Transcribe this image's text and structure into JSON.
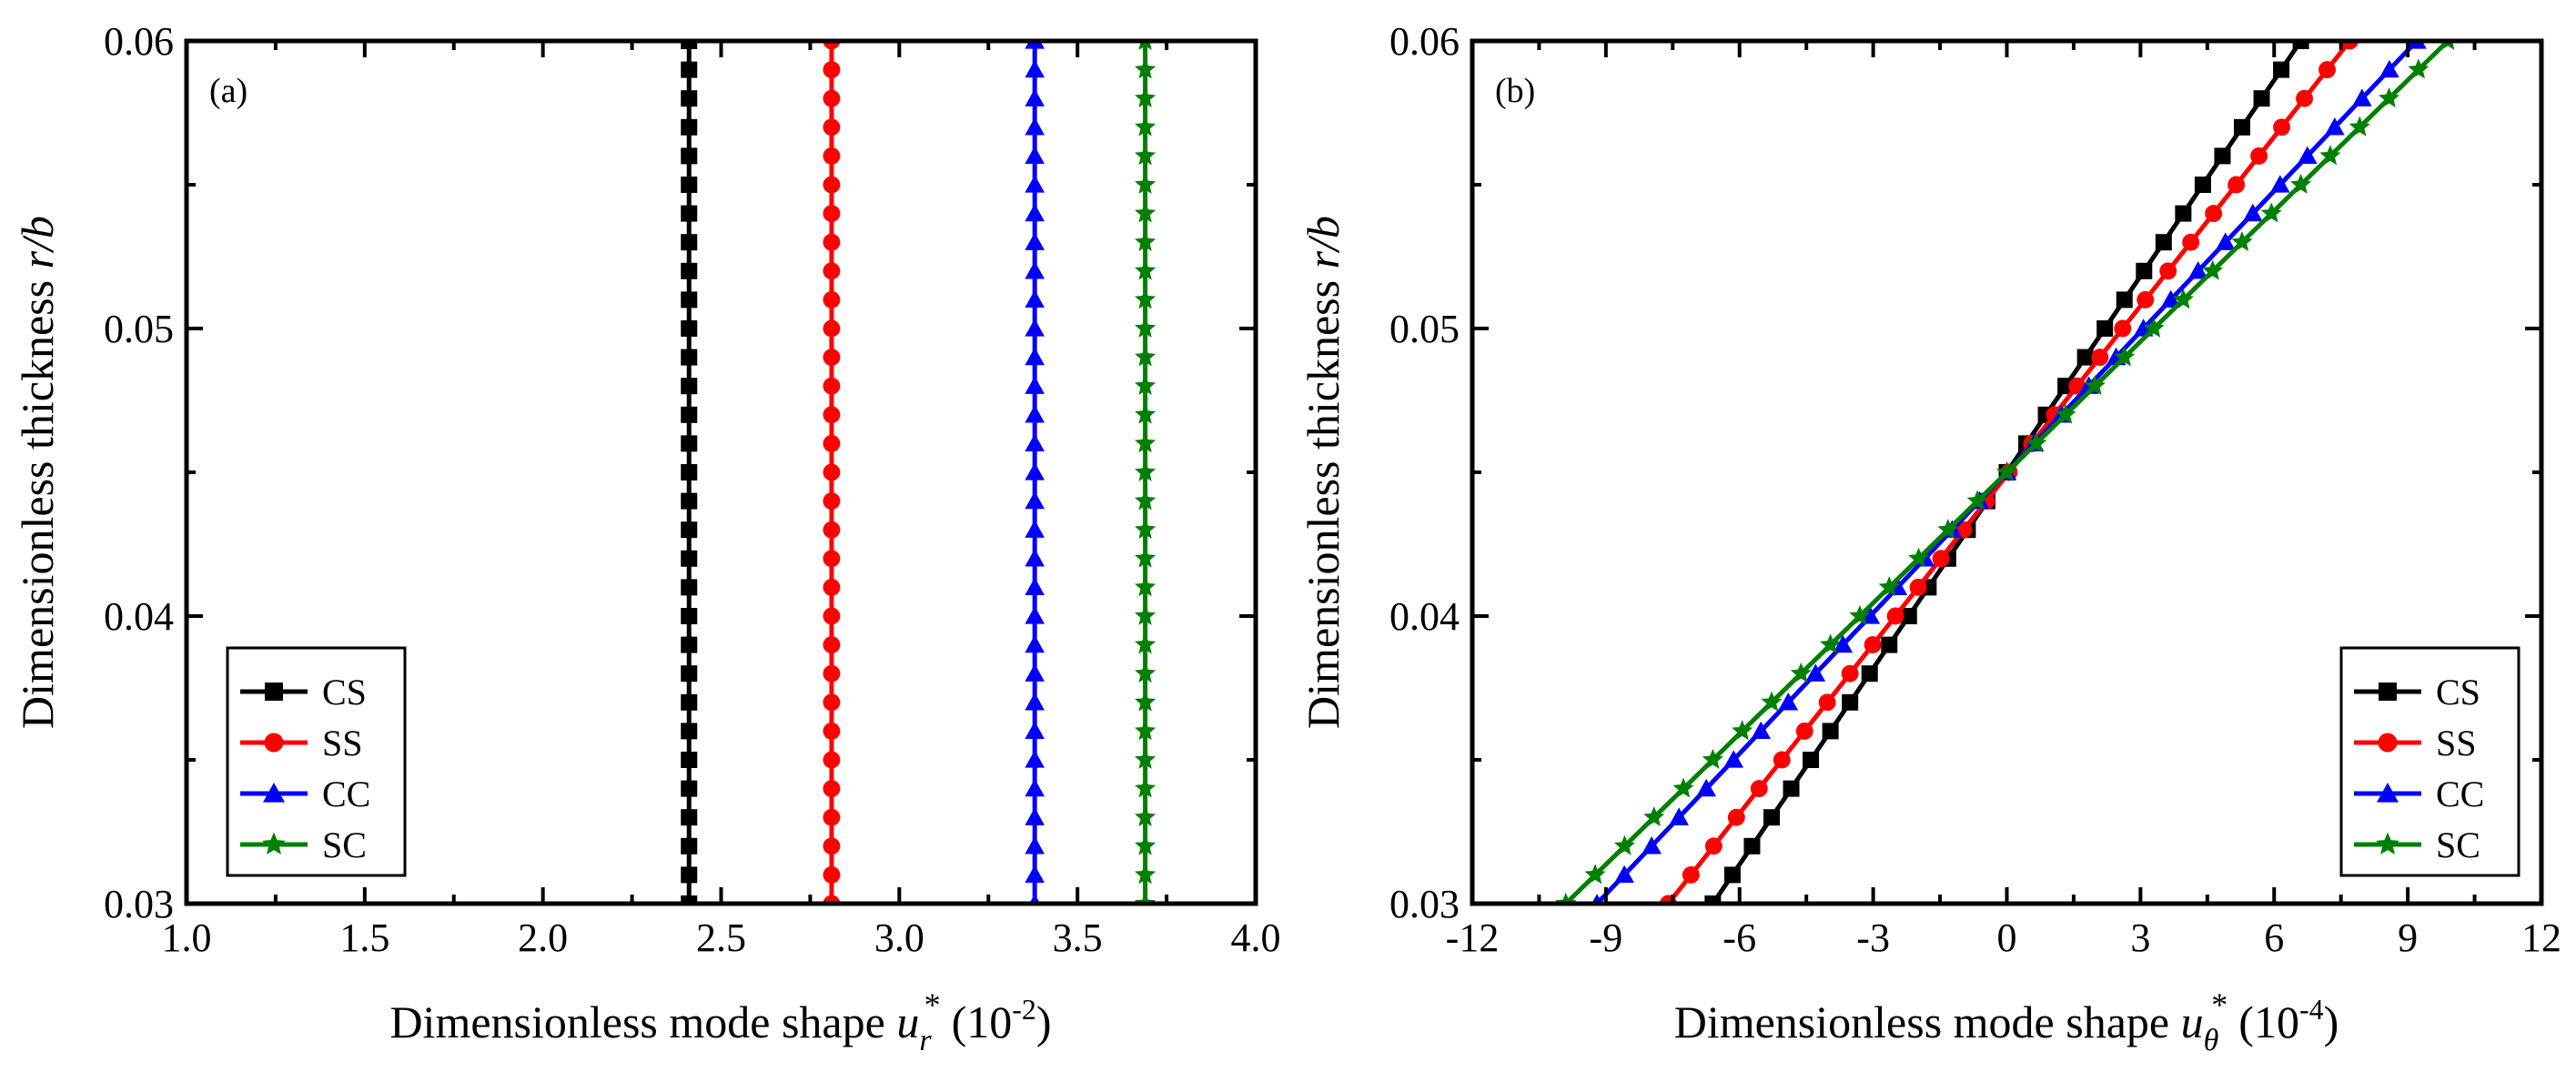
{
  "chart_data": [
    {
      "type": "line",
      "panel_label": "(a)",
      "xlabel_prefix": "Dimensionless mode shape ",
      "xlabel_var": "u",
      "xlabel_sub": "r",
      "xlabel_sup": "*",
      "xlabel_unit_base": "(10",
      "xlabel_unit_exp": "-2",
      "xlabel_unit_close": ")",
      "ylabel_main": "Dimensionless thickness ",
      "ylabel_var": "r/b",
      "xlim": [
        1.0,
        4.0
      ],
      "ylim": [
        0.03,
        0.06
      ],
      "xticks": [
        1.0,
        1.5,
        2.0,
        2.5,
        3.0,
        3.5,
        4.0
      ],
      "xtick_labels": [
        "1.0",
        "1.5",
        "2.0",
        "2.5",
        "3.0",
        "3.5",
        "4.0"
      ],
      "yticks": [
        0.03,
        0.04,
        0.05,
        0.06
      ],
      "ytick_labels": [
        "0.03",
        "0.04",
        "0.05",
        "0.06"
      ],
      "legend_position": "bottom-left",
      "series": [
        {
          "name": "CS",
          "color": "#000000",
          "marker": "square",
          "x0": 2.41,
          "slope": 0
        },
        {
          "name": "SS",
          "color": "#ff0000",
          "marker": "circle",
          "x0": 2.81,
          "slope": 0
        },
        {
          "name": "CC",
          "color": "#0000ff",
          "marker": "triangle",
          "x0": 3.38,
          "slope": 0
        },
        {
          "name": "SC",
          "color": "#008000",
          "marker": "star",
          "x0": 3.69,
          "slope": 0
        }
      ],
      "y_points": {
        "start": 0.03,
        "end": 0.06,
        "count": 31
      }
    },
    {
      "type": "line",
      "panel_label": "(b)",
      "xlabel_prefix": "Dimensionless mode shape ",
      "xlabel_var": "u",
      "xlabel_sub": "θ",
      "xlabel_sup": "*",
      "xlabel_unit_base": "(10",
      "xlabel_unit_exp": "-4",
      "xlabel_unit_close": ")",
      "ylabel_main": "Dimensionless thickness ",
      "ylabel_var": "r/b",
      "xlim": [
        -12,
        12
      ],
      "ylim": [
        0.03,
        0.06
      ],
      "xticks": [
        -12,
        -9,
        -6,
        -3,
        0,
        3,
        6,
        9,
        12
      ],
      "xtick_labels": [
        "-12",
        "-9",
        "-6",
        "-3",
        "0",
        "3",
        "6",
        "9",
        "12"
      ],
      "yticks": [
        0.03,
        0.04,
        0.05,
        0.06
      ],
      "ytick_labels": [
        "0.03",
        "0.04",
        "0.05",
        "0.06"
      ],
      "legend_position": "bottom-right",
      "series": [
        {
          "name": "CS",
          "color": "#000000",
          "marker": "square",
          "x_at_ymin": -6.6,
          "x_at_ymax": 6.6
        },
        {
          "name": "SS",
          "color": "#ff0000",
          "marker": "circle",
          "x_at_ymin": -7.6,
          "x_at_ymax": 7.7
        },
        {
          "name": "CC",
          "color": "#0000ff",
          "marker": "triangle",
          "x_at_ymin": -9.2,
          "x_at_ymax": 9.2
        },
        {
          "name": "SC",
          "color": "#008000",
          "marker": "star",
          "x_at_ymin": -9.9,
          "x_at_ymax": 9.9
        }
      ],
      "y_points": {
        "start": 0.03,
        "end": 0.06,
        "count": 31
      }
    }
  ]
}
